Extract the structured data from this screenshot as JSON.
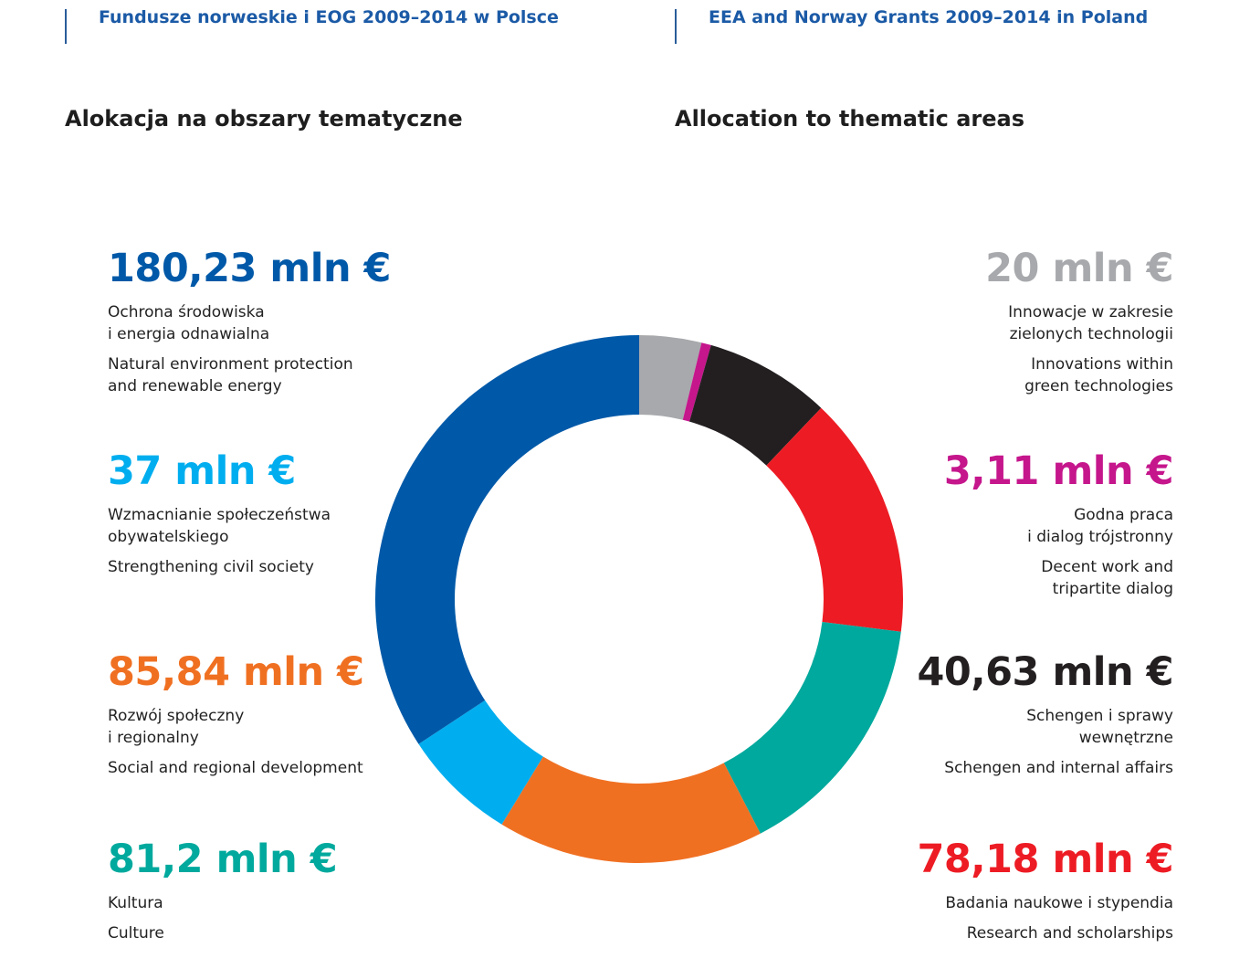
{
  "header": {
    "left_title": "Fundusze norweskie i EOG 2009–2014 w Polsce",
    "right_title": "EEA and Norway Grants 2009–2014 in Poland"
  },
  "sections": {
    "left_title": "Alokacja na obszary tematyczne",
    "right_title": "Allocation to thematic areas"
  },
  "colors": {
    "header_text": "#1b5aa6",
    "environment": "#0059a8",
    "civil_society": "#00aeef",
    "social_regional": "#f07022",
    "culture": "#00a99d",
    "green_innovation": "#a7a9ac",
    "decent_work": "#c5168c",
    "schengen": "#231f20",
    "research": "#ed1c24"
  },
  "chart_data": {
    "type": "pie",
    "variant": "donut",
    "unit": "mln €",
    "slices": [
      {
        "id": "green_innovation",
        "value": 20,
        "label": "20 mln €",
        "pl": "Innowacje w zakresie\nzielonych technologii",
        "en": "Innovations within\ngreen technologies",
        "color": "#a7a9ac",
        "side": "right"
      },
      {
        "id": "decent_work",
        "value": 3.11,
        "label": "3,11 mln €",
        "pl": "Godna praca\ni dialog trójstronny",
        "en": "Decent work and\ntripartite dialog",
        "color": "#c5168c",
        "side": "right"
      },
      {
        "id": "schengen",
        "value": 40.63,
        "label": "40,63 mln €",
        "pl": "Schengen i sprawy\nwewnętrzne",
        "en": "Schengen and internal affairs",
        "color": "#231f20",
        "side": "right"
      },
      {
        "id": "research",
        "value": 78.18,
        "label": "78,18 mln €",
        "pl": "Badania naukowe i stypendia",
        "en": "Research and scholarships",
        "color": "#ed1c24",
        "side": "right"
      },
      {
        "id": "culture",
        "value": 81.2,
        "label": "81,2 mln €",
        "pl": "Kultura",
        "en": "Culture",
        "color": "#00a99d",
        "side": "left"
      },
      {
        "id": "social_regional",
        "value": 85.84,
        "label": "85,84 mln €",
        "pl": "Rozwój społeczny\ni regionalny",
        "en": "Social and regional development",
        "color": "#f07022",
        "side": "left"
      },
      {
        "id": "civil_society",
        "value": 37,
        "label": "37 mln €",
        "pl": "Wzmacnianie społeczeństwa\nobywatelskiego",
        "en": "Strengthening civil society",
        "color": "#00aeef",
        "side": "left"
      },
      {
        "id": "environment",
        "value": 180.23,
        "label": "180,23 mln €",
        "pl": "Ochrona środowiska\ni energia odnawialna",
        "en": "Natural environment protection\nand renewable energy",
        "color": "#0059a8",
        "side": "left"
      }
    ]
  }
}
